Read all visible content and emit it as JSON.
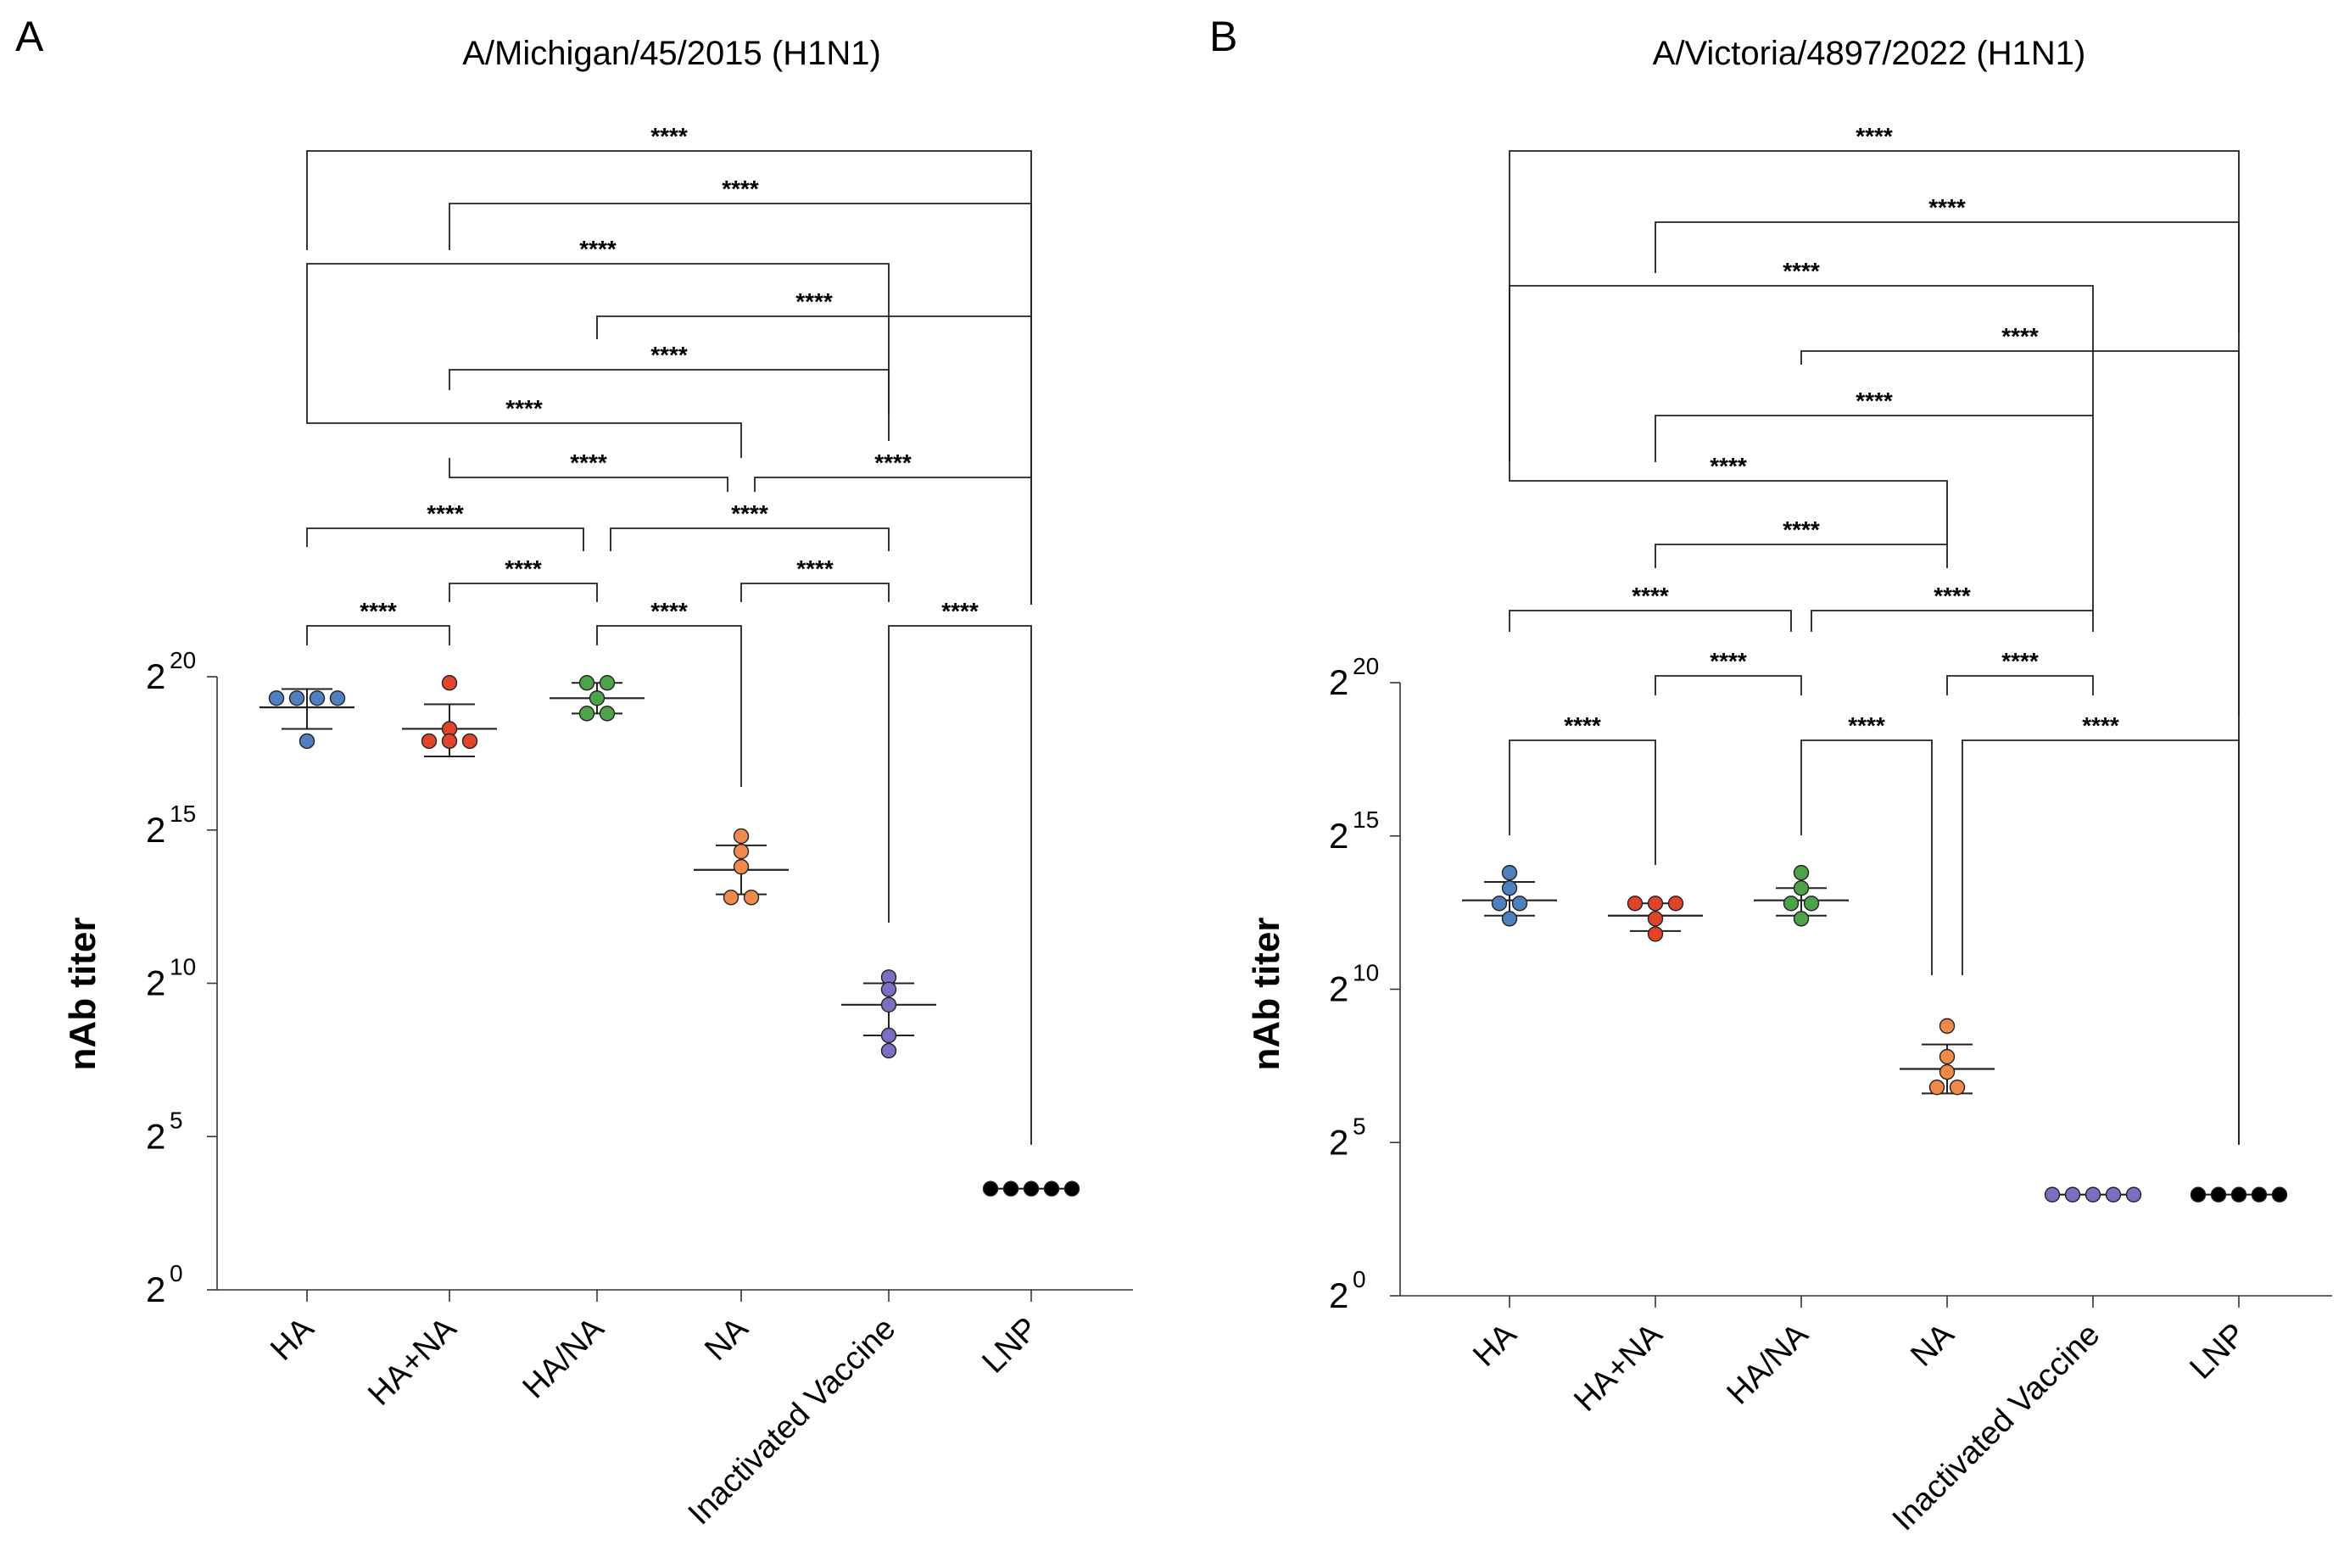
{
  "chart_data": [
    {
      "type": "scatter",
      "panel_label": "A",
      "title": "A/Michigan/45/2015 (H1N1)",
      "ylabel": "nAb titer",
      "xlabel": "",
      "y_scale": "log2",
      "ylim": [
        0,
        20
      ],
      "yticks": [
        {
          "base": "2",
          "exp": "0",
          "value": 0
        },
        {
          "base": "2",
          "exp": "5",
          "value": 5
        },
        {
          "base": "2",
          "exp": "10",
          "value": 10
        },
        {
          "base": "2",
          "exp": "15",
          "value": 15
        },
        {
          "base": "2",
          "exp": "20",
          "value": 20
        }
      ],
      "categories": [
        "HA",
        "HA+NA",
        "HA/NA",
        "NA",
        "Inactivated Vaccine",
        "LNP"
      ],
      "series": [
        {
          "name": "HA",
          "color": "#4f7fbf",
          "points": [
            19.3,
            19.3,
            19.3,
            19.3,
            17.9
          ],
          "mean": 19.0,
          "sd_low": 18.3,
          "sd_high": 19.6
        },
        {
          "name": "HA+NA",
          "color": "#e0452b",
          "points": [
            19.8,
            18.3,
            17.9,
            17.9,
            17.9
          ],
          "mean": 18.3,
          "sd_low": 17.4,
          "sd_high": 19.1
        },
        {
          "name": "HA/NA",
          "color": "#4ea34a",
          "points": [
            19.8,
            19.8,
            19.3,
            18.8,
            18.8
          ],
          "mean": 19.3,
          "sd_low": 18.8,
          "sd_high": 19.8
        },
        {
          "name": "NA",
          "color": "#f08a4b",
          "points": [
            14.8,
            14.3,
            13.8,
            12.8,
            12.8
          ],
          "mean": 13.7,
          "sd_low": 12.9,
          "sd_high": 14.5
        },
        {
          "name": "Inactivated Vaccine",
          "color": "#7a6fc0",
          "points": [
            10.2,
            9.8,
            9.3,
            8.3,
            7.8
          ],
          "mean": 9.3,
          "sd_low": 8.3,
          "sd_high": 10.0
        },
        {
          "name": "LNP",
          "color": "#000000",
          "points": [
            3.3,
            3.3,
            3.3,
            3.3,
            3.3
          ],
          "mean": 3.3,
          "sd_low": 3.3,
          "sd_high": 3.3
        }
      ],
      "significance": [
        {
          "from": "HA",
          "to": "LNP",
          "label": "****"
        },
        {
          "from": "HA+NA",
          "to": "LNP",
          "label": "****"
        },
        {
          "from": "HA",
          "to": "Inactivated Vaccine",
          "label": "****"
        },
        {
          "from": "HA/NA",
          "to": "LNP",
          "label": "****"
        },
        {
          "from": "HA+NA",
          "to": "Inactivated Vaccine",
          "label": "****"
        },
        {
          "from": "HA",
          "to": "NA",
          "label": "****"
        },
        {
          "from": "HA+NA",
          "to": "NA",
          "label": "****"
        },
        {
          "from": "NA",
          "to": "LNP",
          "label": "****"
        },
        {
          "from": "HA",
          "to": "HA/NA",
          "label": "****"
        },
        {
          "from": "HA/NA",
          "to": "Inactivated Vaccine",
          "label": "****"
        },
        {
          "from": "HA+NA",
          "to": "HA/NA",
          "label": "****"
        },
        {
          "from": "NA",
          "to": "Inactivated Vaccine",
          "label": "****"
        },
        {
          "from": "HA",
          "to": "HA+NA",
          "label": "****"
        },
        {
          "from": "HA/NA",
          "to": "NA",
          "label": "****"
        },
        {
          "from": "Inactivated Vaccine",
          "to": "LNP",
          "label": "****"
        }
      ]
    },
    {
      "type": "scatter",
      "panel_label": "B",
      "title": "A/Victoria/4897/2022 (H1N1)",
      "ylabel": "nAb titer",
      "xlabel": "",
      "y_scale": "log2",
      "ylim": [
        0,
        20
      ],
      "yticks": [
        {
          "base": "2",
          "exp": "0",
          "value": 0
        },
        {
          "base": "2",
          "exp": "5",
          "value": 5
        },
        {
          "base": "2",
          "exp": "10",
          "value": 10
        },
        {
          "base": "2",
          "exp": "15",
          "value": 15
        },
        {
          "base": "2",
          "exp": "20",
          "value": 20
        }
      ],
      "categories": [
        "HA",
        "HA+NA",
        "HA/NA",
        "NA",
        "Inactivated Vaccine",
        "LNP"
      ],
      "series": [
        {
          "name": "HA",
          "color": "#4f7fbf",
          "points": [
            13.8,
            13.3,
            12.8,
            12.8,
            12.3
          ],
          "mean": 12.9,
          "sd_low": 12.4,
          "sd_high": 13.5
        },
        {
          "name": "HA+NA",
          "color": "#e0452b",
          "points": [
            12.8,
            12.8,
            12.8,
            12.3,
            11.8
          ],
          "mean": 12.4,
          "sd_low": 11.9,
          "sd_high": 12.8
        },
        {
          "name": "HA/NA",
          "color": "#4ea34a",
          "points": [
            13.8,
            13.3,
            12.8,
            12.8,
            12.3
          ],
          "mean": 12.9,
          "sd_low": 12.4,
          "sd_high": 13.3
        },
        {
          "name": "NA",
          "color": "#f08a4b",
          "points": [
            8.8,
            7.8,
            7.3,
            6.8,
            6.8
          ],
          "mean": 7.4,
          "sd_low": 6.6,
          "sd_high": 8.2
        },
        {
          "name": "Inactivated Vaccine",
          "color": "#7a6fc0",
          "points": [
            3.3,
            3.3,
            3.3,
            3.3,
            3.3
          ],
          "mean": 3.3,
          "sd_low": 3.3,
          "sd_high": 3.3
        },
        {
          "name": "LNP",
          "color": "#000000",
          "points": [
            3.3,
            3.3,
            3.3,
            3.3,
            3.3
          ],
          "mean": 3.3,
          "sd_low": 3.3,
          "sd_high": 3.3
        }
      ],
      "significance": [
        {
          "from": "HA",
          "to": "LNP",
          "label": "****"
        },
        {
          "from": "HA+NA",
          "to": "LNP",
          "label": "****"
        },
        {
          "from": "HA",
          "to": "Inactivated Vaccine",
          "label": "****"
        },
        {
          "from": "HA/NA",
          "to": "LNP",
          "label": "****"
        },
        {
          "from": "HA+NA",
          "to": "Inactivated Vaccine",
          "label": "****"
        },
        {
          "from": "HA",
          "to": "NA",
          "label": "****"
        },
        {
          "from": "HA+NA",
          "to": "NA",
          "label": "****"
        },
        {
          "from": "HA",
          "to": "HA/NA",
          "label": "****"
        },
        {
          "from": "HA/NA",
          "to": "Inactivated Vaccine",
          "label": "****"
        },
        {
          "from": "HA+NA",
          "to": "HA/NA",
          "label": "****"
        },
        {
          "from": "NA",
          "to": "Inactivated Vaccine",
          "label": "****"
        },
        {
          "from": "HA",
          "to": "HA+NA",
          "label": "****"
        },
        {
          "from": "HA/NA",
          "to": "NA",
          "label": "****"
        },
        {
          "from": "NA",
          "to": "LNP",
          "label": "****"
        }
      ]
    }
  ]
}
